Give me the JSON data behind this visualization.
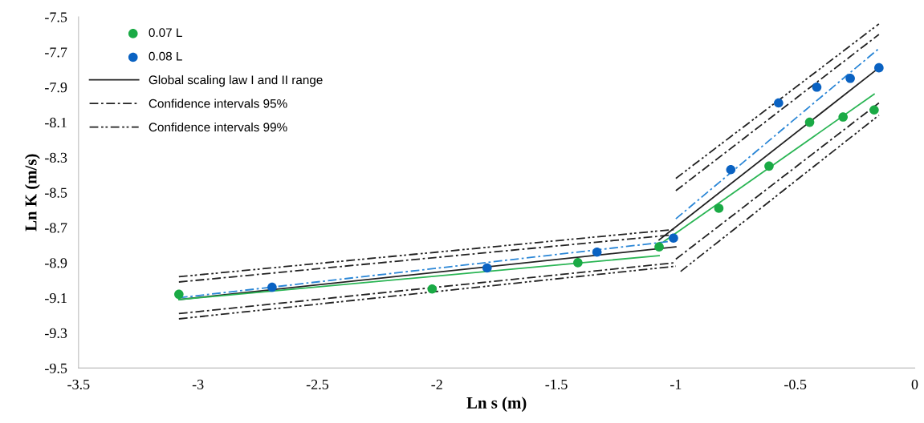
{
  "chart_data": {
    "type": "scatter",
    "xlabel": "Ln s (m)",
    "ylabel": "Ln K (m/s)",
    "xlim": [
      -3.5,
      0
    ],
    "xticks": [
      -3.5,
      -3,
      -2.5,
      -2,
      -1.5,
      -1,
      -0.5,
      0
    ],
    "ylim": [
      -9.5,
      -7.5
    ],
    "yticks": [
      -9.5,
      -9.3,
      -9.1,
      -8.9,
      -8.7,
      -8.5,
      -8.3,
      -8.1,
      -7.9,
      -7.7,
      -7.5
    ],
    "grid": false,
    "legend": "top left",
    "series": [
      {
        "name": "0.07 L",
        "marker": "circle",
        "color": "#1aaa45",
        "x": [
          -3.08,
          -2.02,
          -1.41,
          -1.07,
          -0.82,
          -0.61,
          -0.44,
          -0.3,
          -0.17
        ],
        "values": [
          -9.08,
          -9.05,
          -8.9,
          -8.81,
          -8.59,
          -8.35,
          -8.1,
          -8.07,
          -8.03
        ]
      },
      {
        "name": "0.08 L",
        "marker": "circle",
        "color": "#0a62c2",
        "x": [
          -2.69,
          -1.79,
          -1.33,
          -1.01,
          -0.77,
          -0.57,
          -0.41,
          -0.27,
          -0.15
        ],
        "values": [
          -9.04,
          -8.93,
          -8.84,
          -8.76,
          -8.37,
          -7.99,
          -7.9,
          -7.85,
          -7.79
        ]
      },
      {
        "name": "Global scaling law I and II range",
        "type": "line",
        "line_style": "solid",
        "color": "#222222",
        "x": [
          -3.08,
          -1.0,
          null,
          -1.07,
          -0.15
        ],
        "values": [
          -9.11,
          -8.81,
          null,
          -8.77,
          -7.79
        ]
      },
      {
        "name": "Confidence intervals 95%",
        "type": "line",
        "line_style": "dashed",
        "color": "#222222",
        "x": [
          -3.08,
          -1.0,
          null,
          -1.0,
          -0.15
        ],
        "values": [
          -9.01,
          -8.74,
          null,
          -8.49,
          -7.6
        ]
      },
      {
        "type": "line",
        "line_style": "dashed",
        "color": "#222222",
        "x": [
          -3.08,
          -1.0,
          null,
          -1.0,
          -0.15
        ],
        "values": [
          -9.19,
          -8.9,
          null,
          -8.88,
          -7.99
        ]
      },
      {
        "name": "Confidence intervals 99%",
        "type": "line",
        "line_style": "dotted",
        "color": "#222222",
        "x": [
          -3.08,
          -1.0,
          null,
          -1.0,
          -0.15
        ],
        "values": [
          -8.98,
          -8.71,
          null,
          -8.42,
          -7.54
        ]
      },
      {
        "type": "line",
        "line_style": "dotted",
        "color": "#222222",
        "x": [
          -3.08,
          -1.0,
          null,
          -0.98,
          -0.15
        ],
        "values": [
          -9.22,
          -8.92,
          null,
          -8.95,
          -8.06
        ]
      },
      {
        "type": "line",
        "line_style": "solid",
        "color": "#2ab554",
        "x": [
          -3.08,
          -1.07,
          null,
          -1.05,
          -0.17
        ],
        "values": [
          -9.11,
          -8.86,
          null,
          -8.78,
          -7.94
        ]
      },
      {
        "type": "line",
        "line_style": "dashed",
        "color": "#2a86d6",
        "x": [
          -3.08,
          -1.03,
          null,
          -1.0,
          -0.15
        ],
        "values": [
          -9.1,
          -8.78,
          null,
          -8.65,
          -7.68
        ]
      }
    ]
  }
}
